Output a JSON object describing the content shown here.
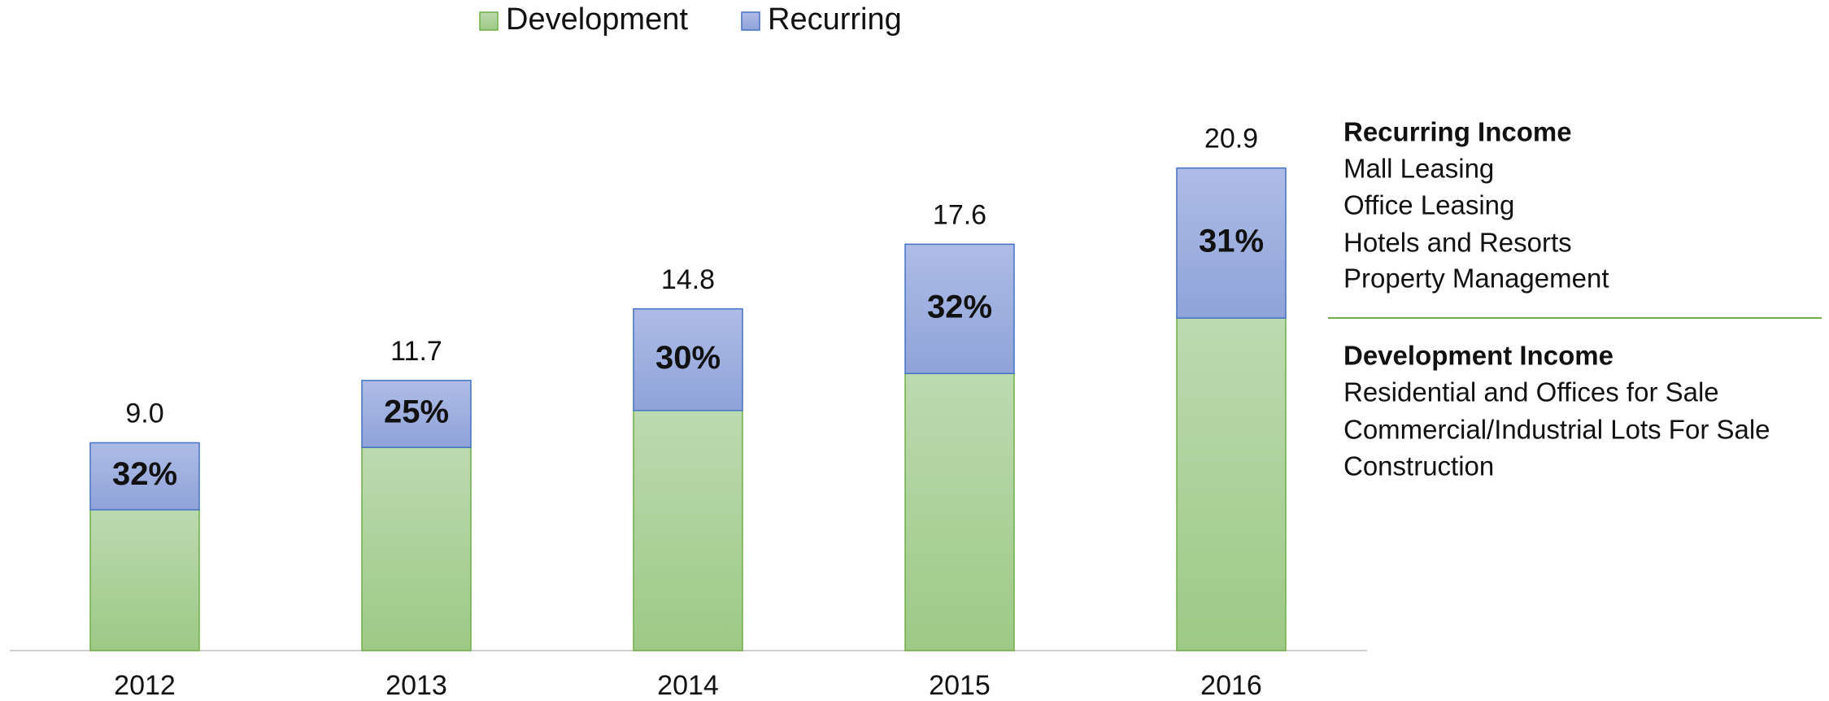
{
  "chart_data": {
    "type": "stacked_bar",
    "categories": [
      "2012",
      "2013",
      "2014",
      "2015",
      "2016"
    ],
    "series": [
      {
        "name": "Development",
        "color": "#9dc985",
        "values": [
          6.1,
          8.8,
          10.4,
          12.0,
          14.4
        ]
      },
      {
        "name": "Recurring",
        "color": "#8fa3d9",
        "values": [
          2.9,
          2.9,
          4.4,
          5.6,
          6.5
        ]
      }
    ],
    "totals": [
      9,
      11.7,
      14.8,
      17.6,
      20.9
    ],
    "total_labels": [
      "9.0",
      "11.7",
      "14.8",
      "17.6",
      "20.9"
    ],
    "share_labels": [
      "32%",
      "25%",
      "30%",
      "32%",
      "31%"
    ],
    "ylim": [
      0,
      23
    ]
  },
  "notes": {
    "recurring": {
      "title": "Recurring Income",
      "items": [
        "Mall Leasing",
        "Office Leasing",
        "Hotels and Resorts",
        "Property Management"
      ]
    },
    "development": {
      "title": "Development Income",
      "items": [
        "Residential and Offices for Sale",
        "Commercial/Industrial Lots For Sale",
        "Construction"
      ]
    }
  }
}
